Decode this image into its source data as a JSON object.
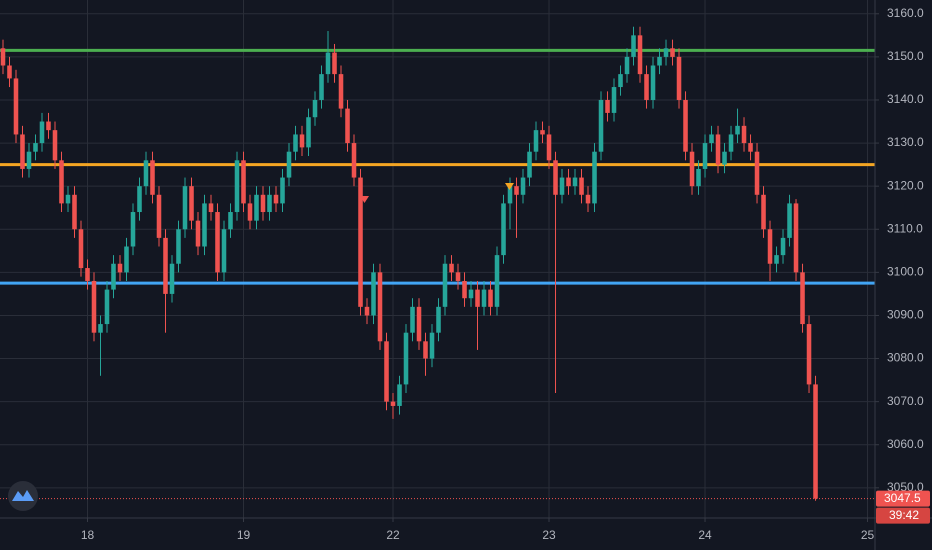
{
  "chart_data": {
    "type": "candlestick",
    "up_color": "#26a69a",
    "down_color": "#ef5350",
    "open": [
      3152,
      3148,
      3145,
      3132,
      3124,
      3128,
      3130,
      3135,
      3133,
      3126,
      3116,
      3118,
      3110,
      3101,
      3098,
      3086,
      3088,
      3096,
      3102,
      3100,
      3106,
      3114,
      3120,
      3126,
      3118,
      3108,
      3095,
      3102,
      3110,
      3120,
      3112,
      3106,
      3116,
      3114,
      3100,
      3110,
      3114,
      3126,
      3116,
      3112,
      3118,
      3114,
      3118,
      3116,
      3122,
      3128,
      3132,
      3129,
      3136,
      3140,
      3146,
      3151,
      3146,
      3138,
      3130,
      3122,
      3092,
      3090,
      3100,
      3084,
      3070,
      3069,
      3074,
      3086,
      3092,
      3084,
      3080,
      3086,
      3092,
      3102,
      3100,
      3098,
      3094,
      3096,
      3092,
      3096,
      3092,
      3104,
      3116,
      3120,
      3118,
      3122,
      3128,
      3133,
      3132,
      3126,
      3118,
      3122,
      3120,
      3122,
      3118,
      3116,
      3128,
      3140,
      3137,
      3143,
      3146,
      3150,
      3155,
      3146,
      3140,
      3148,
      3150,
      3152,
      3150,
      3140,
      3128,
      3120,
      3124,
      3130,
      3132,
      3125,
      3128,
      3132,
      3134,
      3130,
      3128,
      3118,
      3110,
      3102,
      3104,
      3108,
      3116,
      3100,
      3088,
      3074
    ],
    "high": [
      3154,
      3150,
      3147,
      3134,
      3130,
      3132,
      3137,
      3137,
      3135,
      3128,
      3120,
      3120,
      3112,
      3103,
      3100,
      3090,
      3098,
      3104,
      3104,
      3108,
      3116,
      3122,
      3128,
      3128,
      3120,
      3110,
      3104,
      3112,
      3122,
      3122,
      3114,
      3118,
      3118,
      3116,
      3112,
      3116,
      3128,
      3128,
      3118,
      3120,
      3120,
      3120,
      3120,
      3124,
      3130,
      3134,
      3134,
      3138,
      3142,
      3148,
      3156,
      3153,
      3148,
      3140,
      3132,
      3124,
      3094,
      3102,
      3102,
      3086,
      3072,
      3076,
      3088,
      3094,
      3094,
      3086,
      3088,
      3094,
      3104,
      3104,
      3102,
      3100,
      3098,
      3098,
      3098,
      3098,
      3106,
      3118,
      3122,
      3122,
      3124,
      3130,
      3135,
      3135,
      3134,
      3128,
      3124,
      3124,
      3124,
      3124,
      3120,
      3130,
      3142,
      3142,
      3145,
      3148,
      3152,
      3157,
      3157,
      3148,
      3150,
      3152,
      3154,
      3154,
      3152,
      3142,
      3130,
      3126,
      3132,
      3134,
      3134,
      3130,
      3134,
      3138,
      3136,
      3132,
      3130,
      3120,
      3112,
      3106,
      3110,
      3118,
      3117,
      3102,
      3090,
      3076
    ],
    "low": [
      3146,
      3143,
      3130,
      3122,
      3122,
      3126,
      3128,
      3131,
      3124,
      3114,
      3114,
      3108,
      3099,
      3096,
      3084,
      3076,
      3086,
      3094,
      3098,
      3098,
      3104,
      3112,
      3118,
      3116,
      3106,
      3086,
      3093,
      3100,
      3108,
      3110,
      3104,
      3104,
      3112,
      3098,
      3098,
      3108,
      3112,
      3114,
      3110,
      3110,
      3112,
      3112,
      3114,
      3114,
      3120,
      3126,
      3127,
      3127,
      3134,
      3138,
      3144,
      3144,
      3136,
      3128,
      3120,
      3090,
      3088,
      3088,
      3082,
      3068,
      3066,
      3067,
      3072,
      3084,
      3082,
      3076,
      3078,
      3084,
      3090,
      3098,
      3096,
      3092,
      3092,
      3082,
      3090,
      3090,
      3090,
      3102,
      3110,
      3108,
      3116,
      3120,
      3126,
      3130,
      3124,
      3072,
      3116,
      3118,
      3118,
      3116,
      3114,
      3114,
      3126,
      3135,
      3135,
      3141,
      3144,
      3148,
      3144,
      3138,
      3138,
      3146,
      3148,
      3148,
      3138,
      3126,
      3118,
      3118,
      3122,
      3128,
      3123,
      3123,
      3126,
      3130,
      3128,
      3126,
      3116,
      3108,
      3098,
      3100,
      3102,
      3106,
      3098,
      3086,
      3072,
      3047
    ],
    "close": [
      3148,
      3145,
      3132,
      3124,
      3128,
      3130,
      3135,
      3133,
      3126,
      3116,
      3118,
      3110,
      3101,
      3098,
      3086,
      3088,
      3096,
      3102,
      3100,
      3106,
      3114,
      3120,
      3126,
      3118,
      3108,
      3095,
      3102,
      3110,
      3120,
      3112,
      3106,
      3116,
      3114,
      3100,
      3110,
      3114,
      3126,
      3116,
      3112,
      3118,
      3114,
      3118,
      3116,
      3122,
      3128,
      3132,
      3129,
      3136,
      3140,
      3146,
      3151,
      3146,
      3138,
      3130,
      3122,
      3092,
      3090,
      3100,
      3084,
      3070,
      3069,
      3074,
      3086,
      3092,
      3084,
      3080,
      3086,
      3092,
      3102,
      3100,
      3098,
      3094,
      3096,
      3092,
      3096,
      3092,
      3104,
      3116,
      3120,
      3118,
      3122,
      3128,
      3133,
      3132,
      3126,
      3118,
      3122,
      3120,
      3122,
      3118,
      3116,
      3128,
      3140,
      3137,
      3143,
      3146,
      3150,
      3155,
      3146,
      3140,
      3148,
      3150,
      3152,
      3150,
      3140,
      3128,
      3120,
      3124,
      3130,
      3132,
      3125,
      3128,
      3132,
      3134,
      3130,
      3128,
      3118,
      3110,
      3102,
      3104,
      3108,
      3116,
      3100,
      3088,
      3074,
      3047.5
    ],
    "levels": [
      {
        "value": 3151.5,
        "color": "#4caf50"
      },
      {
        "value": 3125,
        "color": "#f5a623"
      },
      {
        "value": 3097.5,
        "color": "#42a5f5"
      }
    ],
    "countdown": "39:42",
    "ylim": [
      3043,
      3163.2
    ],
    "yticks": [
      {
        "value": 3160,
        "label": "3160.0"
      },
      {
        "value": 3150,
        "label": "3150.0"
      },
      {
        "value": 3140,
        "label": "3140.0"
      },
      {
        "value": 3130,
        "label": "3130.0"
      },
      {
        "value": 3120,
        "label": "3120.0"
      },
      {
        "value": 3110,
        "label": "3110.0"
      },
      {
        "value": 3100,
        "label": "3100.0"
      },
      {
        "value": 3090,
        "label": "3090.0"
      },
      {
        "value": 3080,
        "label": "3080.0"
      },
      {
        "value": 3070,
        "label": "3070.0"
      },
      {
        "value": 3060,
        "label": "3060.0"
      },
      {
        "value": 3050,
        "label": "3050.0"
      }
    ],
    "xlim": [
      -0.46,
      134.15
    ],
    "xticks": [
      {
        "value": 13,
        "label": "18"
      },
      {
        "value": 37,
        "label": "19"
      },
      {
        "value": 60,
        "label": "22"
      },
      {
        "value": 84,
        "label": "23"
      },
      {
        "value": 108,
        "label": "24"
      },
      {
        "value": 133,
        "label": "25"
      }
    ],
    "grid": true
  }
}
